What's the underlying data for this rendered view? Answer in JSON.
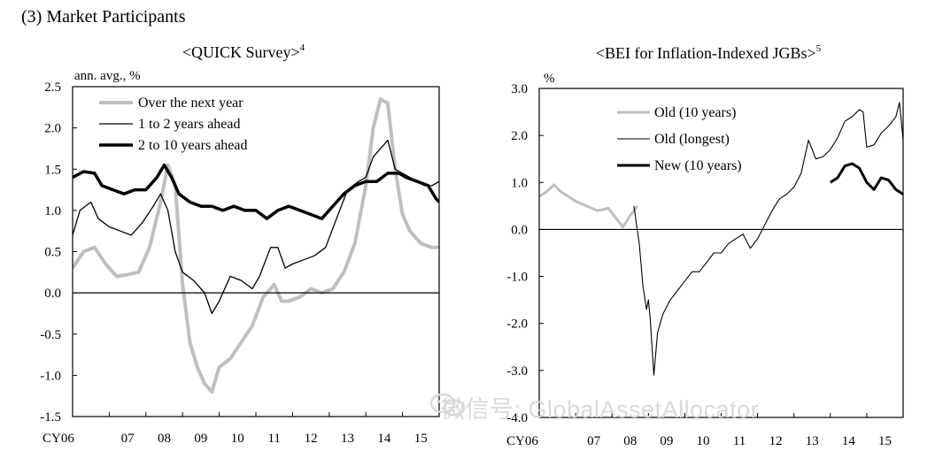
{
  "section_title": "(3) Market Participants",
  "watermark": "微信号: GlobalAssetAllocator",
  "chart_data": [
    {
      "type": "line",
      "title": "<QUICK Survey>",
      "title_superscript": "4",
      "ylabel": "ann. avg., %",
      "ylim": [
        -1.5,
        2.5
      ],
      "yticks": [
        "2.5",
        "2.0",
        "1.5",
        "1.0",
        "0.5",
        "0.0",
        "-0.5",
        "-1.0",
        "-1.5"
      ],
      "ytick_values": [
        2.5,
        2.0,
        1.5,
        1.0,
        0.5,
        0.0,
        -0.5,
        -1.0,
        -1.5
      ],
      "xlim": [
        2006.0,
        2016.0
      ],
      "xticks": [
        "CY06",
        "07",
        "08",
        "09",
        "10",
        "11",
        "12",
        "13",
        "14",
        "15"
      ],
      "xtick_values": [
        2006.5,
        2007.5,
        2008.5,
        2009.5,
        2010.5,
        2011.5,
        2012.5,
        2013.5,
        2014.5,
        2015.5
      ],
      "grid": false,
      "legend_position": "top-left",
      "series": [
        {
          "name": "Over the next year",
          "color": "#bfbfbf",
          "width": 4,
          "x": [
            2006.0,
            2006.3,
            2006.6,
            2006.9,
            2007.2,
            2007.5,
            2007.8,
            2008.1,
            2008.4,
            2008.6,
            2008.8,
            2009.0,
            2009.2,
            2009.4,
            2009.6,
            2009.8,
            2010.0,
            2010.3,
            2010.6,
            2010.9,
            2011.2,
            2011.5,
            2011.7,
            2011.9,
            2012.2,
            2012.5,
            2012.8,
            2013.1,
            2013.4,
            2013.7,
            2014.0,
            2014.2,
            2014.4,
            2014.6,
            2014.8,
            2015.0,
            2015.2,
            2015.5,
            2015.8,
            2016.0
          ],
          "values": [
            0.3,
            0.5,
            0.55,
            0.35,
            0.2,
            0.22,
            0.25,
            0.55,
            1.1,
            1.55,
            1.3,
            0.1,
            -0.6,
            -0.9,
            -1.1,
            -1.2,
            -0.9,
            -0.8,
            -0.6,
            -0.4,
            -0.05,
            0.1,
            -0.1,
            -0.1,
            -0.05,
            0.05,
            0.0,
            0.05,
            0.25,
            0.6,
            1.3,
            2.0,
            2.35,
            2.3,
            1.5,
            0.95,
            0.75,
            0.6,
            0.55,
            0.55
          ]
        },
        {
          "name": "1 to 2 years ahead",
          "color": "#000000",
          "width": 1.3,
          "x": [
            2006.0,
            2006.2,
            2006.5,
            2006.7,
            2007.0,
            2007.3,
            2007.6,
            2007.9,
            2008.2,
            2008.4,
            2008.6,
            2008.8,
            2009.0,
            2009.3,
            2009.6,
            2009.8,
            2010.0,
            2010.3,
            2010.6,
            2010.9,
            2011.1,
            2011.4,
            2011.6,
            2011.8,
            2012.0,
            2012.3,
            2012.6,
            2012.9,
            2013.2,
            2013.5,
            2013.8,
            2014.0,
            2014.2,
            2014.4,
            2014.6,
            2014.8,
            2015.0,
            2015.2,
            2015.4,
            2015.6,
            2015.8,
            2016.0
          ],
          "values": [
            0.7,
            1.0,
            1.1,
            0.9,
            0.8,
            0.75,
            0.7,
            0.85,
            1.05,
            1.2,
            1.0,
            0.5,
            0.25,
            0.15,
            0.0,
            -0.25,
            -0.1,
            0.2,
            0.15,
            0.05,
            0.2,
            0.55,
            0.55,
            0.3,
            0.35,
            0.4,
            0.45,
            0.55,
            0.9,
            1.25,
            1.35,
            1.4,
            1.65,
            1.75,
            1.85,
            1.5,
            1.45,
            1.4,
            1.35,
            1.3,
            1.3,
            1.35
          ]
        },
        {
          "name": "2 to 10 years ahead",
          "color": "#000000",
          "width": 3.5,
          "x": [
            2006.0,
            2006.3,
            2006.6,
            2006.8,
            2007.1,
            2007.4,
            2007.7,
            2008.0,
            2008.3,
            2008.5,
            2008.7,
            2008.9,
            2009.2,
            2009.5,
            2009.8,
            2010.1,
            2010.4,
            2010.7,
            2011.0,
            2011.3,
            2011.6,
            2011.9,
            2012.2,
            2012.5,
            2012.8,
            2013.1,
            2013.4,
            2013.7,
            2014.0,
            2014.3,
            2014.6,
            2014.9,
            2015.1,
            2015.4,
            2015.7,
            2015.9,
            2016.0
          ],
          "values": [
            1.4,
            1.47,
            1.45,
            1.3,
            1.25,
            1.2,
            1.25,
            1.25,
            1.4,
            1.55,
            1.4,
            1.2,
            1.1,
            1.05,
            1.05,
            1.0,
            1.05,
            1.0,
            1.0,
            0.9,
            1.0,
            1.05,
            1.0,
            0.95,
            0.9,
            1.05,
            1.2,
            1.3,
            1.35,
            1.35,
            1.45,
            1.45,
            1.4,
            1.35,
            1.3,
            1.15,
            1.1
          ]
        }
      ]
    },
    {
      "type": "line",
      "title": "<BEI for Inflation-Indexed JGBs>",
      "title_superscript": "5",
      "ylabel": "%",
      "ylim": [
        -4.0,
        3.0
      ],
      "yticks": [
        "3.0",
        "2.0",
        "1.0",
        "0.0",
        "-1.0",
        "-2.0",
        "-3.0",
        "-4.0"
      ],
      "ytick_values": [
        3.0,
        2.0,
        1.0,
        0.0,
        -1.0,
        -2.0,
        -3.0,
        -4.0
      ],
      "xlim": [
        2006.0,
        2016.0
      ],
      "xticks": [
        "CY06",
        "07",
        "08",
        "09",
        "10",
        "11",
        "12",
        "13",
        "14",
        "15"
      ],
      "xtick_values": [
        2006.5,
        2007.5,
        2008.5,
        2009.5,
        2010.5,
        2011.5,
        2012.5,
        2013.5,
        2014.5,
        2015.5
      ],
      "grid": false,
      "legend_position": "top-left",
      "series": [
        {
          "name": "Old (10 years)",
          "color": "#bfbfbf",
          "width": 3,
          "x": [
            2006.0,
            2006.2,
            2006.4,
            2006.6,
            2006.8,
            2007.0,
            2007.3,
            2007.6,
            2007.9,
            2008.1,
            2008.3,
            2008.5,
            2008.7
          ],
          "values": [
            0.7,
            0.8,
            0.95,
            0.8,
            0.7,
            0.6,
            0.5,
            0.4,
            0.45,
            0.25,
            0.05,
            0.3,
            0.5
          ]
        },
        {
          "name": "Old (longest)",
          "color": "#000000",
          "width": 1.1,
          "x": [
            2008.6,
            2008.75,
            2008.85,
            2008.95,
            2009.0,
            2009.05,
            2009.1,
            2009.15,
            2009.25,
            2009.4,
            2009.6,
            2009.8,
            2010.0,
            2010.2,
            2010.4,
            2010.6,
            2010.8,
            2011.0,
            2011.2,
            2011.4,
            2011.6,
            2011.8,
            2012.0,
            2012.2,
            2012.4,
            2012.6,
            2012.8,
            2013.0,
            2013.2,
            2013.4,
            2013.6,
            2013.8,
            2014.0,
            2014.2,
            2014.4,
            2014.6,
            2014.8,
            2014.9,
            2015.0,
            2015.2,
            2015.4,
            2015.6,
            2015.8,
            2015.9,
            2016.0
          ],
          "values": [
            0.5,
            -0.3,
            -1.2,
            -1.7,
            -1.5,
            -1.9,
            -2.5,
            -3.1,
            -2.2,
            -1.8,
            -1.5,
            -1.3,
            -1.1,
            -0.9,
            -0.9,
            -0.7,
            -0.5,
            -0.5,
            -0.3,
            -0.2,
            -0.1,
            -0.4,
            -0.2,
            0.1,
            0.4,
            0.65,
            0.75,
            0.9,
            1.2,
            1.9,
            1.5,
            1.55,
            1.7,
            1.95,
            2.3,
            2.4,
            2.55,
            2.5,
            1.75,
            1.8,
            2.05,
            2.2,
            2.4,
            2.7,
            1.9
          ]
        },
        {
          "name": "New (10 years)",
          "color": "#000000",
          "width": 3,
          "x": [
            2014.0,
            2014.2,
            2014.4,
            2014.6,
            2014.8,
            2015.0,
            2015.2,
            2015.4,
            2015.6,
            2015.8,
            2016.0
          ],
          "values": [
            1.0,
            1.1,
            1.35,
            1.4,
            1.3,
            1.0,
            0.85,
            1.1,
            1.05,
            0.85,
            0.75
          ]
        }
      ]
    }
  ]
}
